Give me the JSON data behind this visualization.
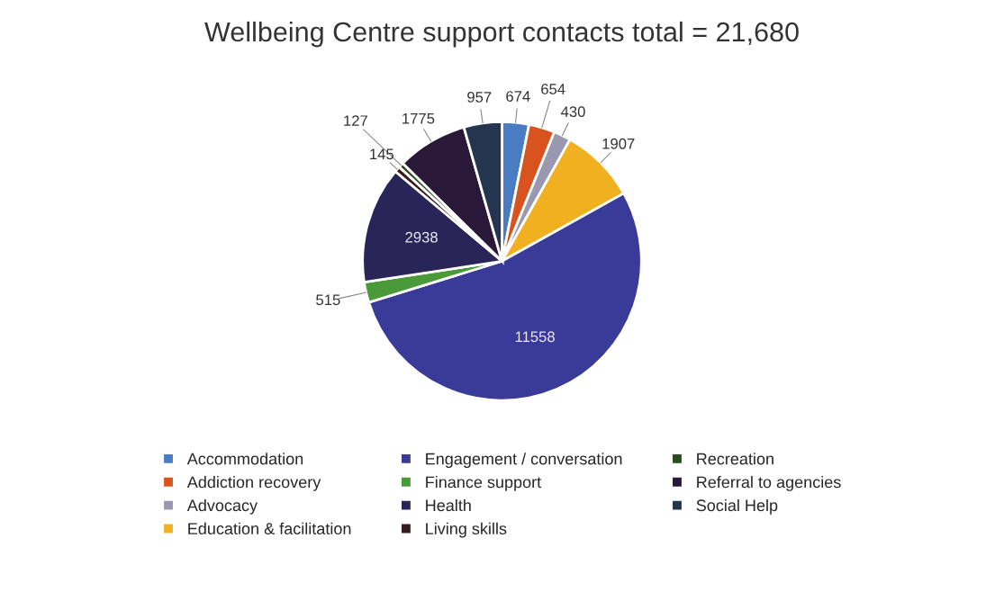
{
  "chart_data": {
    "type": "pie",
    "title": "Wellbeing Centre support contacts total = 21,680",
    "categories": [
      "Accommodation",
      "Addiction recovery",
      "Advocacy",
      "Education & facilitation",
      "Engagement / conversation",
      "Finance support",
      "Health",
      "Living skills",
      "Recreation",
      "Referral to agencies",
      "Social Help"
    ],
    "values": [
      674,
      654,
      430,
      1907,
      11558,
      515,
      2938,
      145,
      127,
      1775,
      957
    ],
    "colors": [
      "#4a7cc4",
      "#d9531e",
      "#9a98b0",
      "#f0b020",
      "#3a3a98",
      "#4a9a3a",
      "#2a2558",
      "#3a1a20",
      "#2a4a20",
      "#2a1838",
      "#253550"
    ],
    "data_labels": true,
    "legend": "bottom"
  }
}
